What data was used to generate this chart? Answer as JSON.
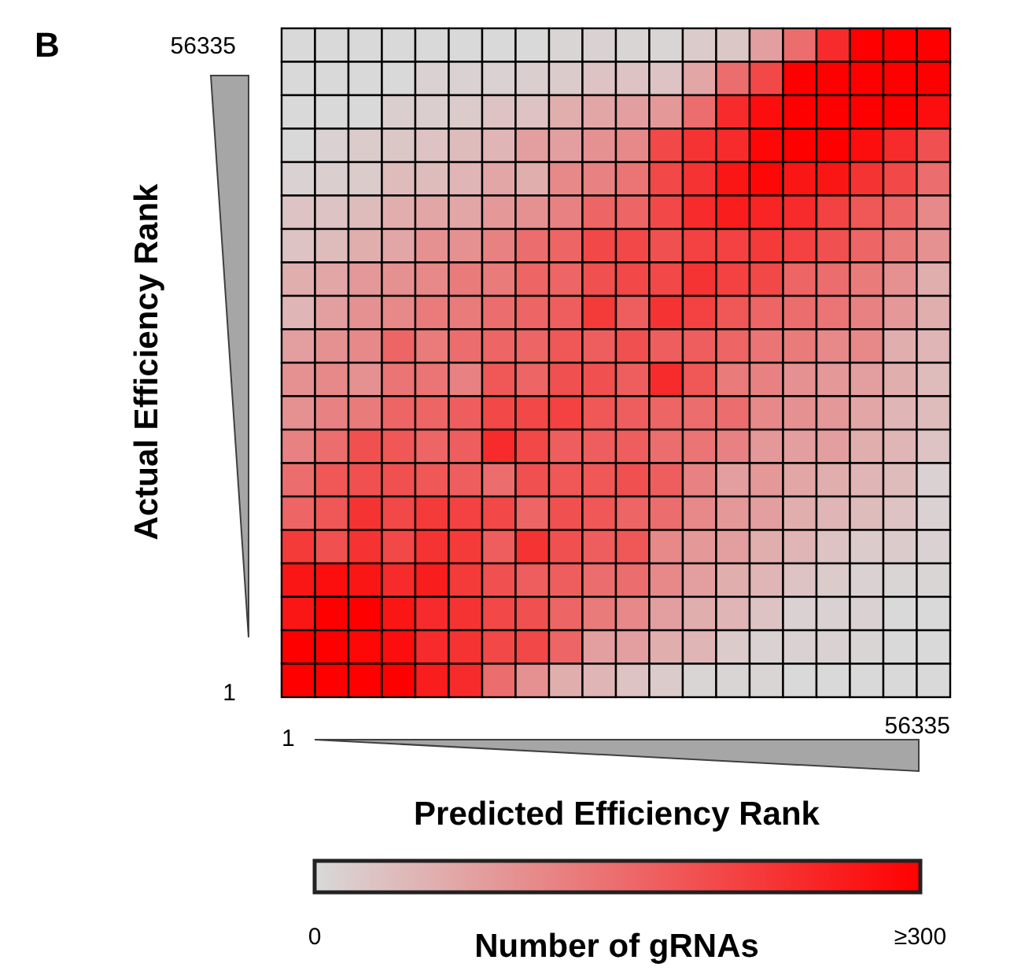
{
  "chart_data": {
    "type": "heatmap",
    "title": "B",
    "xlabel": "Predicted Efficiency Rank",
    "ylabel": "Actual Efficiency Rank",
    "clabel": "Number of gRNAs",
    "categories": [
      null,
      null,
      null,
      null,
      null,
      null,
      null,
      null,
      null,
      null,
      null,
      null,
      null,
      null,
      null,
      null,
      null,
      null,
      null,
      null
    ],
    "y_categories": [
      null,
      null,
      null,
      null,
      null,
      null,
      null,
      null,
      null,
      null,
      null,
      null,
      null,
      null,
      null,
      null,
      null,
      null,
      null,
      null
    ],
    "annotations": [
      "56335",
      "1",
      "1",
      "56335"
    ],
    "clim": [
      0,
      300
    ],
    "cticks": [
      0,
      {
        "value": 300,
        "label": "≥300"
      }
    ],
    "cells": [
      [
        0,
        0,
        0,
        0,
        0,
        0,
        0,
        0,
        5,
        10,
        5,
        5,
        20,
        25,
        80,
        150,
        240,
        300,
        300,
        300
      ],
      [
        0,
        0,
        0,
        0,
        10,
        10,
        10,
        15,
        20,
        30,
        30,
        30,
        70,
        150,
        200,
        300,
        300,
        300,
        300,
        300
      ],
      [
        0,
        0,
        0,
        15,
        15,
        20,
        30,
        30,
        60,
        70,
        80,
        90,
        150,
        240,
        280,
        300,
        300,
        300,
        300,
        280
      ],
      [
        0,
        10,
        20,
        25,
        30,
        40,
        50,
        80,
        80,
        100,
        110,
        200,
        230,
        240,
        290,
        300,
        300,
        280,
        240,
        190
      ],
      [
        10,
        15,
        20,
        40,
        40,
        50,
        70,
        60,
        110,
        120,
        140,
        200,
        230,
        270,
        290,
        270,
        270,
        230,
        200,
        150
      ],
      [
        30,
        30,
        40,
        60,
        70,
        70,
        90,
        100,
        120,
        160,
        160,
        200,
        240,
        260,
        250,
        240,
        210,
        180,
        160,
        110
      ],
      [
        30,
        40,
        60,
        70,
        100,
        100,
        120,
        150,
        160,
        200,
        200,
        190,
        210,
        210,
        220,
        210,
        190,
        160,
        130,
        100
      ],
      [
        60,
        70,
        90,
        100,
        110,
        130,
        130,
        160,
        160,
        190,
        200,
        200,
        230,
        210,
        200,
        160,
        150,
        130,
        100,
        60
      ],
      [
        50,
        80,
        100,
        110,
        130,
        130,
        150,
        160,
        170,
        220,
        170,
        230,
        210,
        180,
        160,
        150,
        140,
        120,
        90,
        60
      ],
      [
        80,
        100,
        110,
        160,
        130,
        150,
        160,
        160,
        180,
        170,
        190,
        170,
        170,
        160,
        140,
        130,
        110,
        110,
        60,
        50
      ],
      [
        100,
        110,
        100,
        140,
        140,
        120,
        180,
        160,
        190,
        190,
        170,
        240,
        180,
        130,
        120,
        100,
        90,
        80,
        60,
        40
      ],
      [
        100,
        120,
        130,
        160,
        160,
        170,
        200,
        200,
        210,
        180,
        170,
        160,
        150,
        150,
        110,
        100,
        90,
        70,
        50,
        40
      ],
      [
        120,
        150,
        190,
        180,
        160,
        170,
        240,
        200,
        170,
        170,
        170,
        150,
        140,
        120,
        90,
        80,
        80,
        60,
        50,
        30
      ],
      [
        150,
        180,
        190,
        190,
        180,
        170,
        150,
        190,
        180,
        180,
        190,
        170,
        120,
        80,
        90,
        70,
        60,
        50,
        40,
        10
      ],
      [
        160,
        180,
        230,
        200,
        220,
        210,
        200,
        160,
        190,
        180,
        160,
        150,
        110,
        90,
        80,
        60,
        50,
        40,
        30,
        10
      ],
      [
        220,
        190,
        230,
        200,
        230,
        220,
        170,
        230,
        190,
        170,
        180,
        110,
        90,
        80,
        60,
        50,
        30,
        20,
        20,
        10
      ],
      [
        270,
        280,
        270,
        240,
        260,
        220,
        190,
        170,
        170,
        150,
        150,
        110,
        80,
        60,
        50,
        30,
        20,
        10,
        5,
        5
      ],
      [
        270,
        300,
        300,
        270,
        240,
        230,
        200,
        190,
        160,
        130,
        110,
        80,
        60,
        50,
        30,
        10,
        10,
        10,
        0,
        0
      ],
      [
        300,
        300,
        290,
        280,
        240,
        230,
        200,
        200,
        160,
        80,
        80,
        60,
        50,
        20,
        10,
        10,
        10,
        5,
        0,
        0
      ],
      [
        300,
        300,
        300,
        300,
        260,
        240,
        150,
        100,
        60,
        50,
        30,
        20,
        5,
        5,
        5,
        0,
        0,
        0,
        0,
        0
      ]
    ]
  }
}
